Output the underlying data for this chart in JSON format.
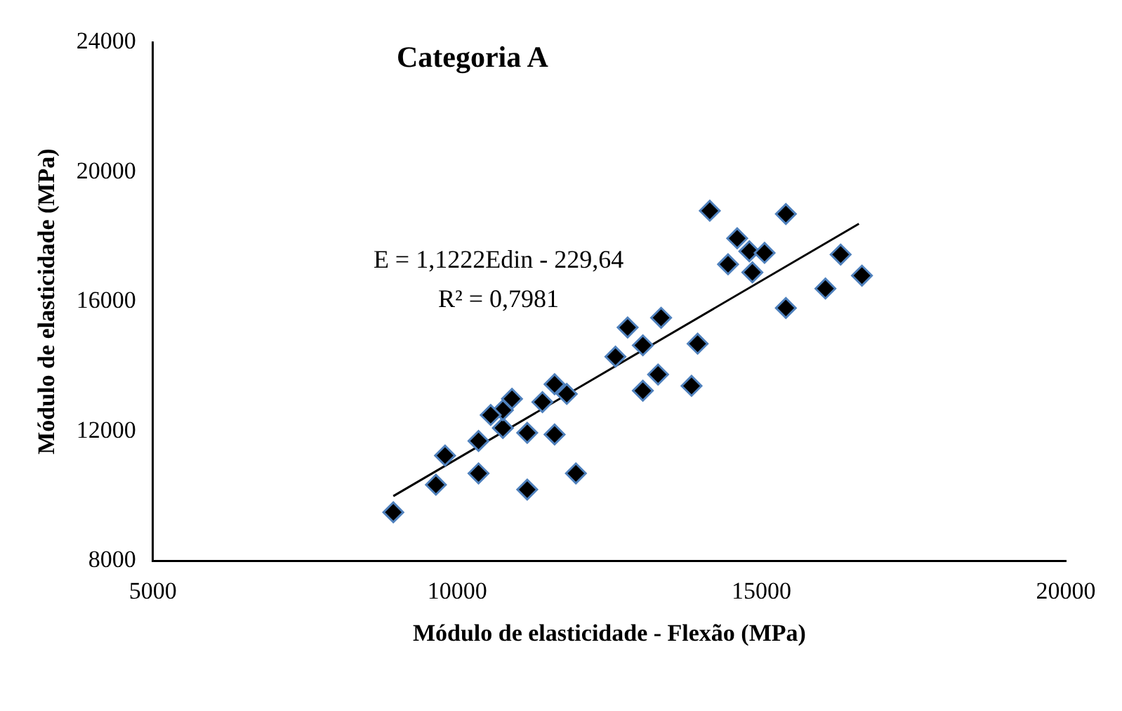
{
  "chart_data": {
    "type": "scatter",
    "title": "Categoria A",
    "xlabel": "Módulo de elasticidade - Flexão (MPa)",
    "ylabel": "Módulo de elasticidade (MPa)",
    "annotations": [
      "E = 1,1222Edin - 229,64",
      "R² = 0,7981"
    ],
    "xlim": [
      5000,
      20000
    ],
    "xticks": [
      5000,
      10000,
      15000,
      20000
    ],
    "ylim": [
      8000,
      24000
    ],
    "yticks": [
      8000,
      12000,
      16000,
      20000,
      24000
    ],
    "grid": false,
    "legend": false,
    "marker": "diamond",
    "series": [
      {
        "color": "#000000",
        "x": [
          8950,
          9650,
          9800,
          10350,
          10350,
          11150,
          11950,
          11600,
          11150,
          10750,
          10750,
          10550,
          10900,
          11400,
          11600,
          11800,
          12600,
          12800,
          13050,
          13050,
          13300,
          13350,
          13850,
          13950,
          14150,
          15400,
          14600,
          14800,
          15050,
          14450,
          14850,
          16300,
          16650,
          16050,
          15400
        ],
        "values": [
          9500,
          10350,
          11250,
          11700,
          10700,
          10200,
          10700,
          11900,
          11950,
          12100,
          12650,
          12500,
          13000,
          12900,
          13450,
          13150,
          14300,
          15200,
          14650,
          13250,
          13750,
          15500,
          13400,
          14700,
          18800,
          18700,
          17950,
          17550,
          17500,
          17150,
          16900,
          17450,
          16800,
          16400,
          15800
        ]
      },
      {
        "type": "line",
        "color": "#000000",
        "x": [
          8950,
          16600
        ],
        "values": [
          10000,
          18400
        ],
        "marker": "none"
      }
    ]
  }
}
